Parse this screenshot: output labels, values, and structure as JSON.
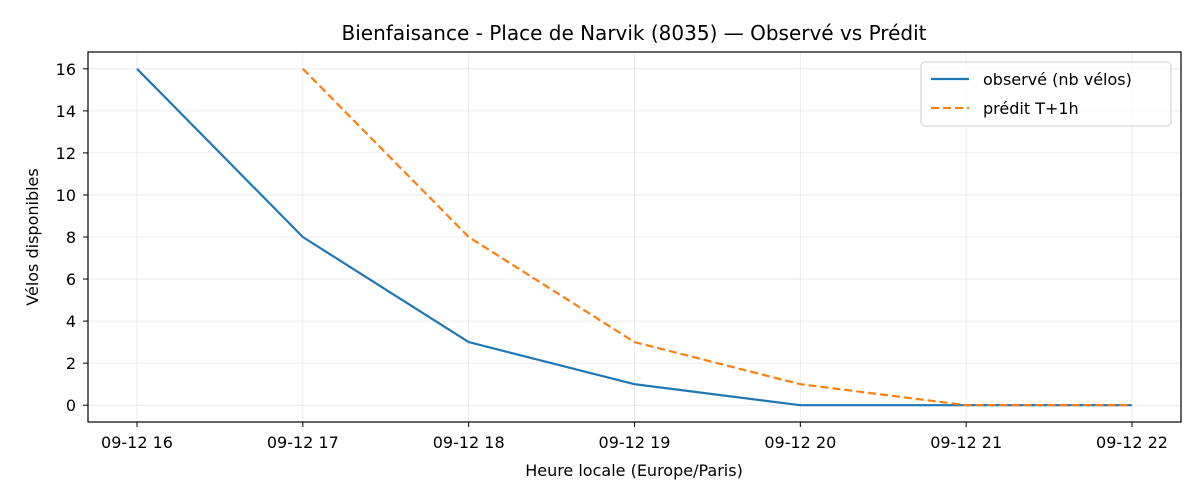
{
  "chart_data": {
    "type": "line",
    "title": "Bienfaisance - Place de Narvik (8035) — Observé vs Prédit",
    "xlabel": "Heure locale (Europe/Paris)",
    "ylabel": "Vélos disponibles",
    "x": [
      "09-12 16",
      "09-12 17",
      "09-12 18",
      "09-12 19",
      "09-12 20",
      "09-12 21",
      "09-12 22"
    ],
    "x_tick_labels": [
      "09-12 16",
      "09-12 17",
      "09-12 18",
      "09-12 19",
      "09-12 20",
      "09-12 21",
      "09-12 22"
    ],
    "y_ticks": [
      0,
      2,
      4,
      6,
      8,
      10,
      12,
      14,
      16
    ],
    "ylim": [
      -0.8,
      16.8
    ],
    "grid": true,
    "legend_position": "top-right",
    "series": [
      {
        "name": "observé (nb vélos)",
        "color": "#1f77b4",
        "style": "solid",
        "values": [
          16,
          8,
          3,
          1,
          0,
          0,
          0
        ]
      },
      {
        "name": "prédit T+1h",
        "color": "#ff7f0e",
        "style": "dashed",
        "values": [
          null,
          16,
          8,
          3,
          1,
          0,
          0
        ]
      }
    ]
  }
}
